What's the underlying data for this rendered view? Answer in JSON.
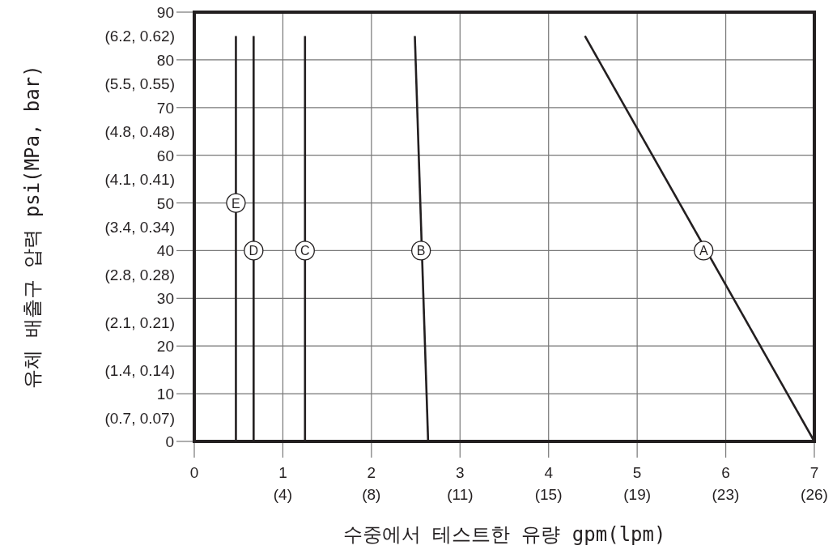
{
  "chart_data": {
    "type": "line",
    "xlabel": "수중에서 테스트한 유량 gpm(lpm)",
    "ylabel": "유체 배출구 압력 psi(MPa, bar)",
    "xlim": [
      0,
      7
    ],
    "ylim": [
      0,
      90
    ],
    "xticks": [
      0,
      1,
      2,
      3,
      4,
      5,
      6,
      7
    ],
    "x2lim": [
      0,
      26.5
    ],
    "x2ticks": [
      {
        "value": 3.785,
        "label": "(4)"
      },
      {
        "value": 7.57,
        "label": "(8)"
      },
      {
        "value": 11.36,
        "label": "(11)"
      },
      {
        "value": 15.14,
        "label": "(15)"
      },
      {
        "value": 18.93,
        "label": "(19)"
      },
      {
        "value": 22.71,
        "label": "(23)"
      },
      {
        "value": 26.5,
        "label": "(26)"
      }
    ],
    "yticks": [
      0,
      {
        "value": 5,
        "label": "(0.7, 0.07)"
      },
      10,
      {
        "value": 15,
        "label": "(1.4, 0.14)"
      },
      20,
      {
        "value": 25,
        "label": "(2.1, 0.21)"
      },
      30,
      {
        "value": 35,
        "label": "(2.8, 0.28)"
      },
      40,
      {
        "value": 45,
        "label": "(3.4, 0.34)"
      },
      50,
      {
        "value": 55,
        "label": "(4.1, 0.41)"
      },
      60,
      {
        "value": 65,
        "label": "(4.8, 0.48)"
      },
      70,
      {
        "value": 75,
        "label": "(5.5, 0.55)"
      },
      80,
      {
        "value": 85,
        "label": "(6.2, 0.62)"
      },
      90
    ],
    "grid": true,
    "marker": "none",
    "line_style": "solid",
    "series": [
      {
        "color": "#231f20",
        "x": [
          0.47,
          0.47
        ],
        "values": [
          0,
          85
        ]
      },
      {
        "color": "#231f20",
        "x": [
          0.67,
          0.67
        ],
        "values": [
          0,
          85
        ]
      },
      {
        "color": "#231f20",
        "x": [
          1.25,
          1.25
        ],
        "values": [
          0,
          85
        ]
      },
      {
        "color": "#231f20",
        "x": [
          2.64,
          2.49
        ],
        "values": [
          0,
          85
        ]
      },
      {
        "color": "#231f20",
        "x": [
          7.0,
          4.41
        ],
        "values": [
          0,
          85
        ]
      }
    ],
    "annotations": [
      {
        "text": "E",
        "x": 0.47,
        "y": 50
      },
      {
        "text": "D",
        "x": 0.67,
        "y": 40
      },
      {
        "text": "C",
        "x": 1.25,
        "y": 40
      },
      {
        "text": "B",
        "x": 2.56,
        "y": 40
      },
      {
        "text": "A",
        "x": 5.75,
        "y": 40
      }
    ]
  }
}
